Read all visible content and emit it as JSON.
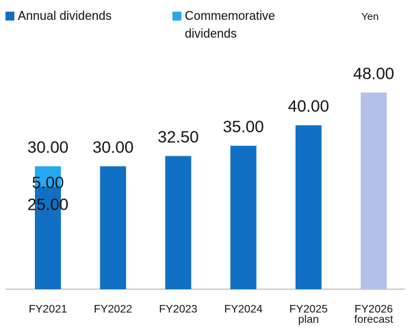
{
  "chart_data": {
    "type": "stacked_bar",
    "unit": "Yen",
    "categories": [
      "FY2021",
      "FY2022",
      "FY2023",
      "FY2024",
      "FY2025\nplan",
      "FY2026\nforecast"
    ],
    "series": [
      {
        "name": "Annual dividends",
        "color": "#1170c4",
        "colors": [
          "#1170c4",
          "#1170c4",
          "#1170c4",
          "#1170c4",
          "#1170c4",
          "#b4c0ea"
        ],
        "values": [
          25,
          30,
          32.5,
          35,
          40,
          48
        ],
        "value_labels": [
          "25.00",
          null,
          null,
          null,
          null,
          null
        ]
      },
      {
        "name": "Commemorative\ndividends",
        "color": "#26a9f0",
        "values": [
          5,
          null,
          null,
          null,
          null,
          null
        ],
        "value_labels": [
          "5.00",
          null,
          null,
          null,
          null,
          null
        ]
      }
    ],
    "totals": [
      30,
      30,
      32.5,
      35,
      40,
      48
    ],
    "total_labels": [
      "30.00",
      "30.00",
      "32.50",
      "35.00",
      "40.00",
      "48.00"
    ]
  }
}
